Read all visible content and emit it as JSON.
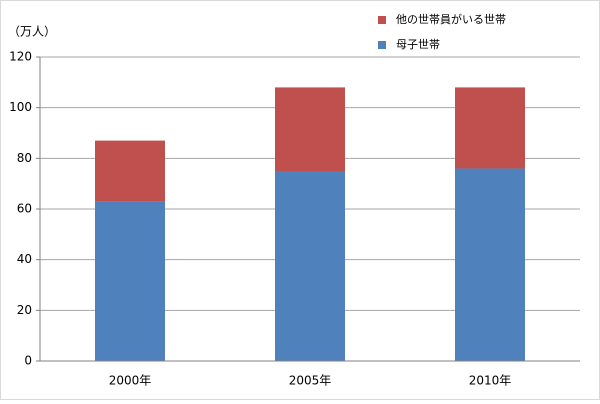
{
  "chart_data": {
    "type": "bar",
    "stacked": true,
    "y_label": "（万人）",
    "categories": [
      "2000年",
      "2005年",
      "2010年"
    ],
    "series": [
      {
        "name": "母子世帯",
        "color": "#4f81bd",
        "values": [
          63,
          75,
          76
        ]
      },
      {
        "name": "他の世帯員がいる世帯",
        "color": "#c0504d",
        "values": [
          24,
          33,
          32
        ]
      }
    ],
    "ylim": [
      0,
      120
    ],
    "yticks": [
      0,
      20,
      40,
      60,
      80,
      100,
      120
    ],
    "grid": true
  }
}
